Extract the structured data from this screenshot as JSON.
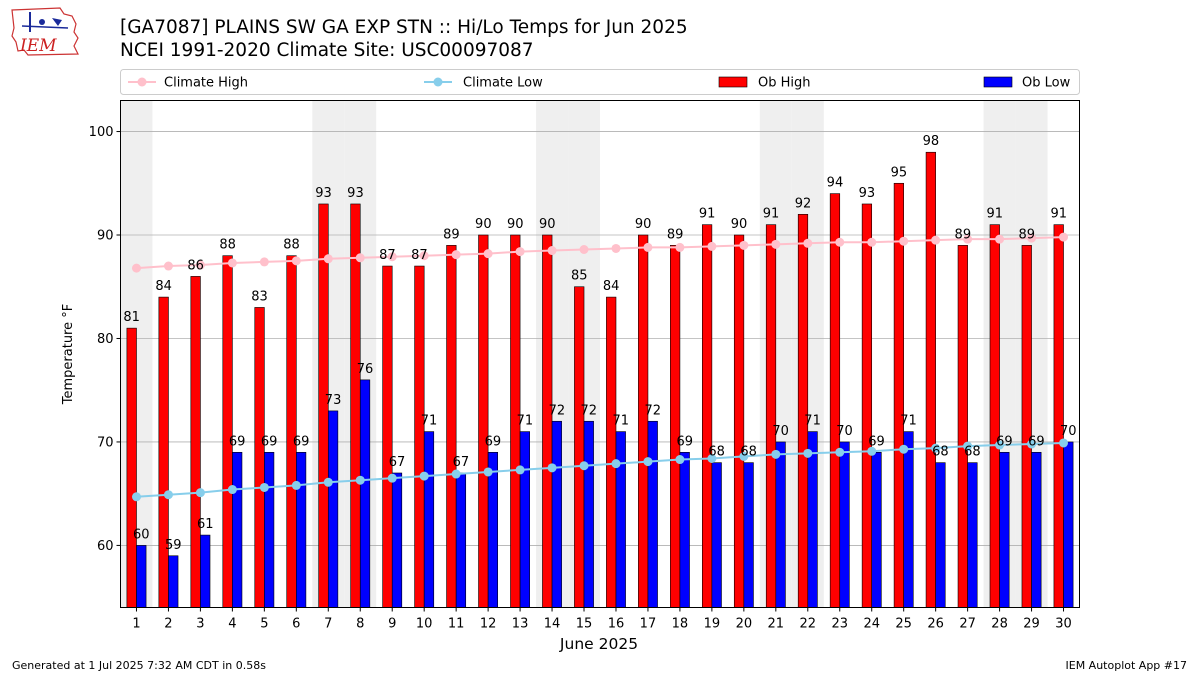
{
  "header": {
    "title_line1": "[GA7087] PLAINS SW GA EXP STN :: Hi/Lo Temps for Jun 2025",
    "title_line2": "NCEI 1991-2020 Climate Site: USC00097087"
  },
  "logo": {
    "text": "IEM"
  },
  "footer": {
    "left": "Generated at 1 Jul 2025 7:32 AM CDT in 0.58s",
    "right": "IEM Autoplot App #17"
  },
  "colors": {
    "ob_high": "#ff0000",
    "ob_low": "#0000ff",
    "climate_high": "#ffc0cb",
    "climate_low": "#87ceeb",
    "weekend_band": "#efefef"
  },
  "chart_data": {
    "type": "bar",
    "xlabel": "June 2025",
    "ylabel": "Temperature °F",
    "ylim": [
      54,
      103
    ],
    "yticks": [
      60,
      70,
      80,
      90,
      100
    ],
    "grid": "y",
    "legend_placement": "top, above plot",
    "legend": [
      "Climate High",
      "Climate Low",
      "Ob High",
      "Ob Low"
    ],
    "x": [
      1,
      2,
      3,
      4,
      5,
      6,
      7,
      8,
      9,
      10,
      11,
      12,
      13,
      14,
      15,
      16,
      17,
      18,
      19,
      20,
      21,
      22,
      23,
      24,
      25,
      26,
      27,
      28,
      29,
      30
    ],
    "weekend_days": [
      1,
      7,
      8,
      14,
      15,
      21,
      22,
      28,
      29
    ],
    "series": [
      {
        "name": "Ob High",
        "type": "bar",
        "values": [
          81,
          84,
          86,
          88,
          83,
          88,
          93,
          93,
          87,
          87,
          89,
          90,
          90,
          90,
          85,
          84,
          90,
          89,
          91,
          90,
          91,
          92,
          94,
          93,
          95,
          98,
          89,
          91,
          89,
          91
        ]
      },
      {
        "name": "Ob Low",
        "type": "bar",
        "values": [
          60,
          59,
          61,
          69,
          69,
          69,
          73,
          76,
          67,
          71,
          67,
          69,
          71,
          72,
          72,
          71,
          72,
          69,
          68,
          68,
          70,
          71,
          70,
          69,
          71,
          68,
          68,
          69,
          69,
          70
        ]
      },
      {
        "name": "Climate High",
        "type": "line",
        "values": [
          86.8,
          87.0,
          87.1,
          87.3,
          87.4,
          87.5,
          87.7,
          87.8,
          87.9,
          88.0,
          88.1,
          88.2,
          88.4,
          88.5,
          88.6,
          88.7,
          88.8,
          88.8,
          88.9,
          89.0,
          89.1,
          89.2,
          89.3,
          89.3,
          89.4,
          89.5,
          89.6,
          89.6,
          89.7,
          89.8
        ]
      },
      {
        "name": "Climate Low",
        "type": "line",
        "values": [
          64.7,
          64.9,
          65.1,
          65.4,
          65.6,
          65.8,
          66.1,
          66.3,
          66.5,
          66.7,
          66.9,
          67.1,
          67.3,
          67.5,
          67.7,
          67.9,
          68.1,
          68.3,
          68.4,
          68.6,
          68.8,
          68.9,
          69.0,
          69.1,
          69.3,
          69.4,
          69.6,
          69.7,
          69.8,
          69.9
        ]
      }
    ]
  }
}
